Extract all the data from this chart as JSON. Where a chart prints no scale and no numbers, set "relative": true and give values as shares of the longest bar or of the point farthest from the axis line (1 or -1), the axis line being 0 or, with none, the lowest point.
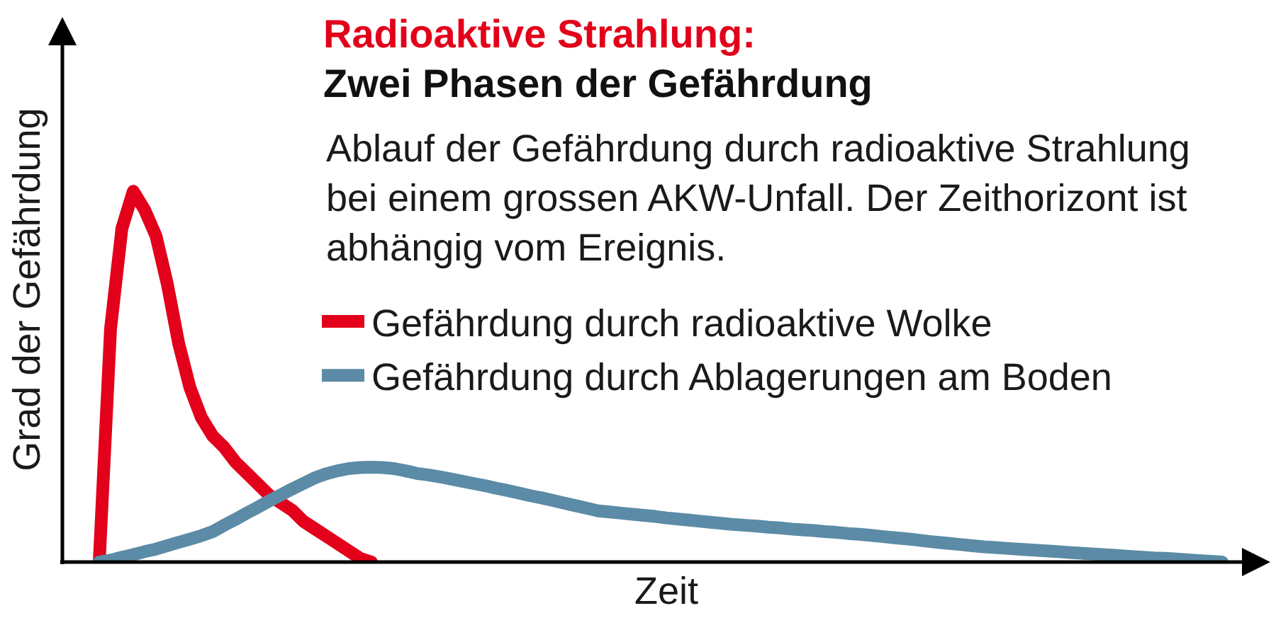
{
  "chart_data": {
    "type": "line",
    "relative": true,
    "title": "Radioaktive Strahlung:",
    "subtitle": "Zwei Phasen der Gefährdung",
    "xlabel": "Zeit",
    "ylabel": "Grad der Gefährdung",
    "annotations": [
      "Ablauf der Gefährdung durch radioaktive Strahlung bei einem grossen AKW-Unfall. Der Zeithorizont ist abhängig vom Ereignis."
    ],
    "categories": [
      null,
      null,
      null,
      null,
      null,
      null,
      null,
      null,
      null,
      null,
      null,
      null,
      null,
      null,
      null,
      null,
      null,
      null,
      null,
      null,
      null,
      null,
      null,
      null,
      null,
      null,
      null,
      null,
      null,
      null,
      null,
      null,
      null,
      null,
      null,
      null,
      null,
      null,
      null,
      null,
      null,
      null,
      null,
      null,
      null,
      null,
      null,
      null,
      null,
      null,
      null,
      null,
      null,
      null,
      null,
      null,
      null,
      null,
      null,
      null,
      null,
      null,
      null,
      null,
      null,
      null,
      null,
      null,
      null,
      null,
      null,
      null,
      null,
      null,
      null,
      null,
      null,
      null,
      null,
      null,
      null,
      null,
      null,
      null,
      null,
      null,
      null,
      null,
      null,
      null,
      null,
      null,
      null,
      null,
      null,
      null,
      null,
      null,
      null,
      null
    ],
    "series": [
      {
        "name": "Gefährdung durch radioaktive Wolke",
        "color": "#e2001a",
        "values": [
          0,
          0.63,
          0.9,
          1,
          0.95,
          0.88,
          0.75,
          0.59,
          0.47,
          0.39,
          0.34,
          0.31,
          0.27,
          0.24,
          0.21,
          0.18,
          0.16,
          0.14,
          0.11,
          0.09,
          0.07,
          0.05,
          0.03,
          0.01,
          0,
          null,
          null,
          null,
          null,
          null,
          null,
          null,
          null,
          null,
          null,
          null,
          null,
          null,
          null,
          null,
          null,
          null,
          null,
          null,
          null,
          null,
          null,
          null,
          null,
          null,
          null,
          null,
          null,
          null,
          null,
          null,
          null,
          null,
          null,
          null,
          null,
          null,
          null,
          null,
          null,
          null,
          null,
          null,
          null,
          null,
          null,
          null,
          null,
          null,
          null,
          null,
          null,
          null,
          null,
          null,
          null,
          null,
          null,
          null,
          null,
          null,
          null,
          null,
          null,
          null,
          null,
          null,
          null,
          null,
          null,
          null,
          null,
          null,
          null,
          null
        ]
      },
      {
        "name": "Gefährdung durch Ablagerungen am Boden",
        "color": "#5b8ba6",
        "values": [
          0,
          0.005,
          0.013,
          0.02,
          0.028,
          0.035,
          0.044,
          0.053,
          0.062,
          0.071,
          0.082,
          0.099,
          0.115,
          0.132,
          0.148,
          0.165,
          0.181,
          0.197,
          0.212,
          0.227,
          0.238,
          0.246,
          0.252,
          0.255,
          0.256,
          0.255,
          0.252,
          0.246,
          0.239,
          0.235,
          0.23,
          0.224,
          0.218,
          0.212,
          0.206,
          0.199,
          0.193,
          0.186,
          0.179,
          0.173,
          0.166,
          0.159,
          0.152,
          0.145,
          0.138,
          0.135,
          0.132,
          0.129,
          0.126,
          0.123,
          0.119,
          0.116,
          0.113,
          0.11,
          0.107,
          0.104,
          0.101,
          0.099,
          0.097,
          0.094,
          0.092,
          0.089,
          0.087,
          0.085,
          0.082,
          0.08,
          0.077,
          0.075,
          0.072,
          0.069,
          0.066,
          0.063,
          0.06,
          0.056,
          0.053,
          0.05,
          0.047,
          0.044,
          0.041,
          0.039,
          0.037,
          0.035,
          0.033,
          0.031,
          0.029,
          0.027,
          0.025,
          0.023,
          0.021,
          0.019,
          0.017,
          0.015,
          0.013,
          0.011,
          0.01,
          0.008,
          0.006,
          0.004,
          0.002,
          0
        ]
      }
    ],
    "legend": "top right"
  }
}
